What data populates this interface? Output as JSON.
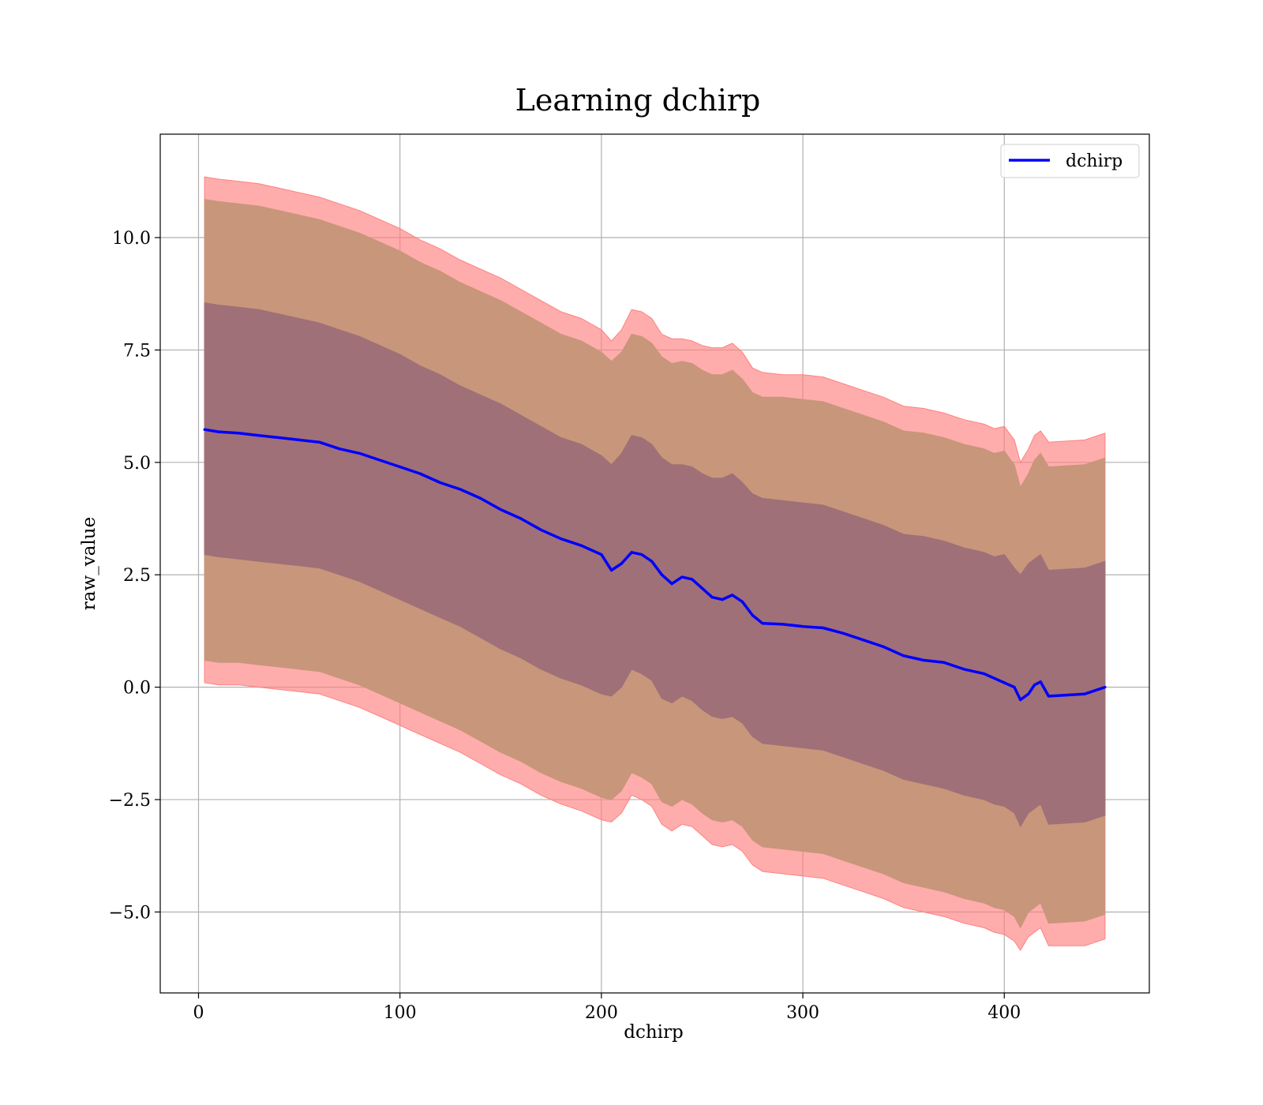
{
  "chart_data": {
    "type": "area",
    "title": "Learning dchirp",
    "xlabel": "dchirp",
    "ylabel": "raw_value",
    "xlim": [
      -19,
      472
    ],
    "ylim": [
      -6.8,
      12.3
    ],
    "x_ticks": [
      0,
      100,
      200,
      300,
      400
    ],
    "x_tick_labels": [
      "0",
      "100",
      "200",
      "300",
      "400"
    ],
    "y_ticks": [
      -5.0,
      -2.5,
      0.0,
      2.5,
      5.0,
      7.5,
      10.0
    ],
    "y_tick_labels": [
      "−5.0",
      "−2.5",
      "0.0",
      "2.5",
      "5.0",
      "7.5",
      "10.0"
    ],
    "grid": true,
    "legend_position": "top-right",
    "legend": [
      "dchirp"
    ],
    "colors": {
      "line": "#0000ff",
      "band_outer": "#ff8080",
      "band_middle": "#c8967a",
      "band_inner": "#a07078"
    },
    "x": [
      3,
      10,
      20,
      30,
      40,
      50,
      60,
      70,
      80,
      90,
      100,
      110,
      120,
      130,
      140,
      150,
      160,
      170,
      180,
      190,
      200,
      205,
      210,
      215,
      220,
      225,
      230,
      235,
      240,
      245,
      250,
      255,
      260,
      265,
      270,
      275,
      280,
      290,
      300,
      310,
      320,
      330,
      340,
      350,
      360,
      370,
      380,
      390,
      395,
      400,
      405,
      408,
      412,
      415,
      418,
      422,
      440,
      450
    ],
    "series": [
      {
        "name": "dchirp",
        "values": [
          5.73,
          5.68,
          5.65,
          5.6,
          5.55,
          5.5,
          5.45,
          5.3,
          5.2,
          5.05,
          4.9,
          4.75,
          4.55,
          4.4,
          4.2,
          3.95,
          3.75,
          3.5,
          3.3,
          3.15,
          2.95,
          2.6,
          2.75,
          3.0,
          2.95,
          2.8,
          2.5,
          2.3,
          2.45,
          2.4,
          2.2,
          2.0,
          1.95,
          2.05,
          1.9,
          1.6,
          1.42,
          1.4,
          1.35,
          1.32,
          1.2,
          1.05,
          0.9,
          0.7,
          0.6,
          0.55,
          0.4,
          0.3,
          0.2,
          0.1,
          0.0,
          -0.28,
          -0.15,
          0.05,
          0.12,
          -0.2,
          -0.15,
          0.0
        ]
      }
    ],
    "bands": [
      {
        "name": "outer",
        "upper": [
          11.35,
          11.3,
          11.25,
          11.2,
          11.1,
          11.0,
          10.9,
          10.75,
          10.6,
          10.4,
          10.2,
          9.95,
          9.75,
          9.5,
          9.3,
          9.1,
          8.85,
          8.6,
          8.35,
          8.2,
          7.95,
          7.7,
          7.95,
          8.4,
          8.35,
          8.2,
          7.85,
          7.75,
          7.75,
          7.7,
          7.6,
          7.55,
          7.55,
          7.65,
          7.45,
          7.1,
          7.0,
          6.95,
          6.95,
          6.9,
          6.75,
          6.6,
          6.45,
          6.25,
          6.2,
          6.1,
          5.95,
          5.85,
          5.75,
          5.8,
          5.5,
          5.0,
          5.3,
          5.6,
          5.7,
          5.45,
          5.5,
          5.65
        ],
        "lower": [
          0.1,
          0.05,
          0.05,
          0.0,
          -0.05,
          -0.1,
          -0.15,
          -0.3,
          -0.45,
          -0.65,
          -0.85,
          -1.05,
          -1.25,
          -1.45,
          -1.7,
          -1.95,
          -2.15,
          -2.4,
          -2.6,
          -2.75,
          -2.95,
          -3.0,
          -2.8,
          -2.4,
          -2.5,
          -2.65,
          -3.05,
          -3.2,
          -3.05,
          -3.1,
          -3.3,
          -3.5,
          -3.55,
          -3.5,
          -3.65,
          -3.95,
          -4.1,
          -4.15,
          -4.2,
          -4.25,
          -4.4,
          -4.55,
          -4.7,
          -4.9,
          -5.0,
          -5.1,
          -5.25,
          -5.35,
          -5.45,
          -5.5,
          -5.65,
          -5.85,
          -5.55,
          -5.45,
          -5.35,
          -5.75,
          -5.75,
          -5.6
        ]
      },
      {
        "name": "middle",
        "upper": [
          10.85,
          10.8,
          10.75,
          10.7,
          10.6,
          10.5,
          10.4,
          10.25,
          10.1,
          9.9,
          9.7,
          9.45,
          9.25,
          9.0,
          8.8,
          8.6,
          8.35,
          8.1,
          7.85,
          7.7,
          7.45,
          7.25,
          7.45,
          7.85,
          7.8,
          7.65,
          7.35,
          7.2,
          7.25,
          7.2,
          7.05,
          6.95,
          6.95,
          7.05,
          6.85,
          6.55,
          6.45,
          6.45,
          6.4,
          6.35,
          6.2,
          6.05,
          5.9,
          5.7,
          5.65,
          5.55,
          5.4,
          5.3,
          5.2,
          5.25,
          4.95,
          4.45,
          4.75,
          5.05,
          5.2,
          4.9,
          4.95,
          5.1
        ],
        "lower": [
          0.6,
          0.55,
          0.55,
          0.5,
          0.45,
          0.4,
          0.35,
          0.2,
          0.05,
          -0.15,
          -0.35,
          -0.55,
          -0.75,
          -0.95,
          -1.2,
          -1.45,
          -1.65,
          -1.9,
          -2.1,
          -2.25,
          -2.45,
          -2.5,
          -2.3,
          -1.9,
          -2.0,
          -2.15,
          -2.55,
          -2.65,
          -2.5,
          -2.6,
          -2.8,
          -2.95,
          -3.0,
          -2.95,
          -3.1,
          -3.4,
          -3.55,
          -3.6,
          -3.65,
          -3.7,
          -3.85,
          -4.0,
          -4.15,
          -4.35,
          -4.45,
          -4.55,
          -4.7,
          -4.8,
          -4.9,
          -4.95,
          -5.1,
          -5.35,
          -5.0,
          -4.9,
          -4.8,
          -5.25,
          -5.2,
          -5.05
        ]
      },
      {
        "name": "inner",
        "upper": [
          8.55,
          8.5,
          8.45,
          8.4,
          8.3,
          8.2,
          8.1,
          7.95,
          7.8,
          7.6,
          7.4,
          7.15,
          6.95,
          6.7,
          6.5,
          6.3,
          6.05,
          5.8,
          5.55,
          5.4,
          5.15,
          4.95,
          5.2,
          5.6,
          5.55,
          5.4,
          5.1,
          4.95,
          4.95,
          4.9,
          4.75,
          4.65,
          4.65,
          4.75,
          4.55,
          4.3,
          4.2,
          4.15,
          4.1,
          4.05,
          3.9,
          3.75,
          3.6,
          3.4,
          3.35,
          3.25,
          3.1,
          3.0,
          2.9,
          2.95,
          2.65,
          2.5,
          2.75,
          2.85,
          2.95,
          2.6,
          2.65,
          2.8
        ],
        "lower": [
          2.95,
          2.9,
          2.85,
          2.8,
          2.75,
          2.7,
          2.65,
          2.5,
          2.35,
          2.15,
          1.95,
          1.75,
          1.55,
          1.35,
          1.1,
          0.85,
          0.65,
          0.4,
          0.2,
          0.05,
          -0.15,
          -0.2,
          0.0,
          0.4,
          0.3,
          0.15,
          -0.25,
          -0.35,
          -0.2,
          -0.3,
          -0.5,
          -0.65,
          -0.7,
          -0.65,
          -0.8,
          -1.1,
          -1.25,
          -1.3,
          -1.35,
          -1.4,
          -1.55,
          -1.7,
          -1.85,
          -2.05,
          -2.15,
          -2.25,
          -2.4,
          -2.5,
          -2.6,
          -2.65,
          -2.8,
          -3.1,
          -2.8,
          -2.7,
          -2.6,
          -3.05,
          -3.0,
          -2.85
        ]
      }
    ]
  }
}
